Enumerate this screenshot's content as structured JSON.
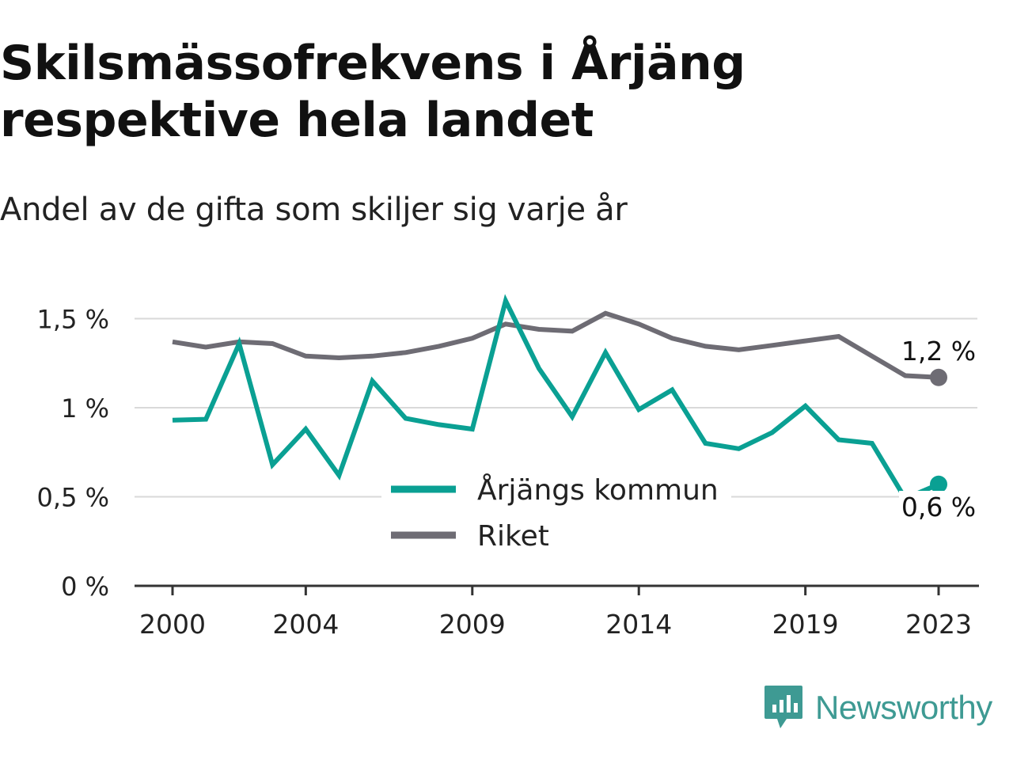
{
  "title": "Skilsmässofrekvens i Årjäng respektive hela landet",
  "subtitle": "Andel av de gifta som skiljer sig varje år",
  "brand": "Newsworthy",
  "colors": {
    "arjang": "#0aa093",
    "riket": "#6e6c74",
    "grid": "#d9d9d9",
    "axis": "#333333",
    "brand": "#3e9a93"
  },
  "chart_data": {
    "type": "line",
    "x": [
      2000,
      2001,
      2002,
      2003,
      2004,
      2005,
      2006,
      2007,
      2008,
      2009,
      2010,
      2011,
      2012,
      2013,
      2014,
      2015,
      2016,
      2017,
      2018,
      2019,
      2020,
      2021,
      2022,
      2023
    ],
    "xticks": [
      2000,
      2004,
      2009,
      2014,
      2019,
      2023
    ],
    "xtick_labels": [
      "2000",
      "2004",
      "2009",
      "2014",
      "2019",
      "2023"
    ],
    "ylim": [
      0,
      1.6
    ],
    "yticks": [
      0,
      0.5,
      1,
      1.5
    ],
    "ytick_labels": [
      "0 %",
      "0,5 %",
      "1 %",
      "1,5 %"
    ],
    "grid": true,
    "legend_position": "center-bottom",
    "series": [
      {
        "name": "Årjängs kommun",
        "color": "#0aa093",
        "values": [
          0.93,
          0.935,
          1.36,
          0.68,
          0.88,
          0.62,
          1.15,
          0.94,
          0.905,
          0.88,
          1.6,
          1.22,
          0.95,
          1.31,
          0.99,
          1.1,
          0.8,
          0.77,
          0.86,
          1.01,
          0.82,
          0.8,
          0.49,
          0.57
        ],
        "end_label": "0,6 %"
      },
      {
        "name": "Riket",
        "color": "#6e6c74",
        "values": [
          1.37,
          1.34,
          1.37,
          1.36,
          1.29,
          1.28,
          1.29,
          1.31,
          1.345,
          1.39,
          1.47,
          1.44,
          1.43,
          1.53,
          1.47,
          1.39,
          1.345,
          1.325,
          1.35,
          1.375,
          1.4,
          1.29,
          1.18,
          1.17
        ],
        "end_label": "1,2 %"
      }
    ]
  }
}
